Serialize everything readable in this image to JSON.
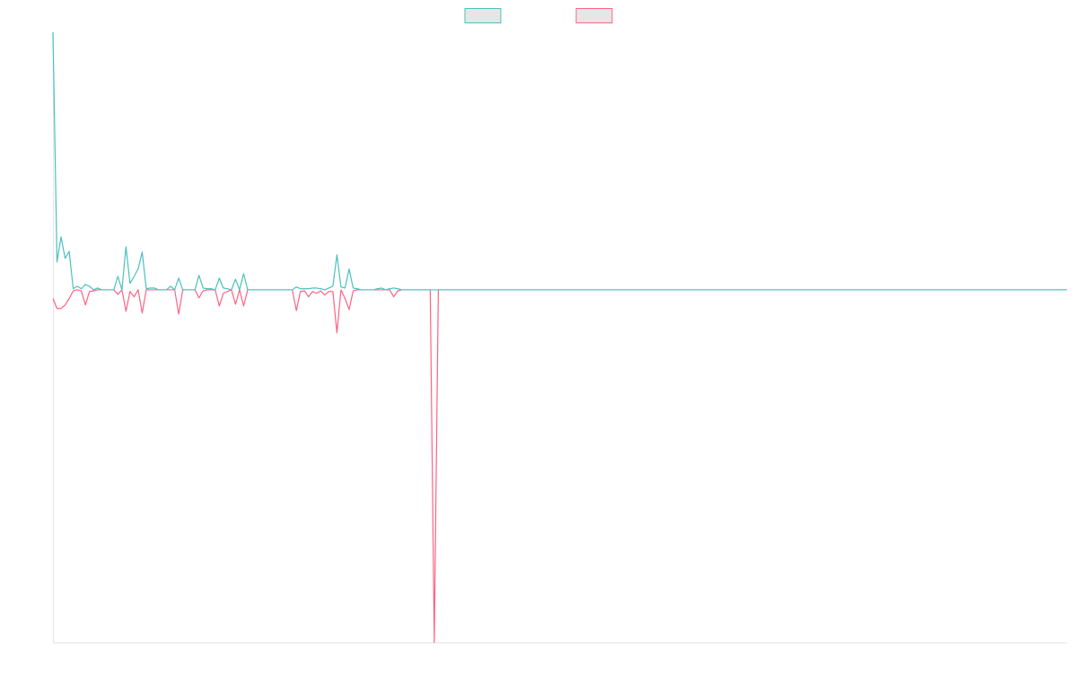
{
  "chart_data": {
    "type": "line",
    "legend": "top",
    "ylim": [
      -100,
      73
    ],
    "categories": [
      null,
      null,
      null,
      null,
      null,
      null,
      null,
      null,
      null,
      null,
      null,
      null,
      null,
      null,
      null,
      null,
      null,
      null,
      null,
      null,
      null,
      null,
      null,
      null,
      null,
      null,
      null,
      null,
      null,
      null,
      null,
      null,
      null,
      null,
      null,
      null,
      null,
      null,
      null,
      null,
      null,
      null,
      null,
      null,
      null,
      null,
      null,
      null,
      null,
      null,
      null,
      null,
      null,
      null,
      null,
      null,
      null,
      null,
      null,
      null,
      null,
      null,
      null,
      null,
      null,
      null,
      null,
      null,
      null,
      null,
      null,
      null,
      null,
      null,
      null,
      null,
      null,
      null,
      null,
      null,
      null,
      null,
      null,
      null,
      null,
      null,
      null,
      null,
      null,
      null,
      null,
      null,
      null,
      null,
      null,
      null,
      null,
      null,
      null,
      null,
      null,
      null,
      null,
      null,
      null,
      null,
      null,
      null,
      null,
      null,
      null,
      null,
      null,
      null,
      null,
      null,
      null,
      null,
      null,
      null,
      null,
      null,
      null,
      null,
      null,
      null,
      null,
      null,
      null,
      null,
      null,
      null,
      null,
      null,
      null,
      null,
      null,
      null,
      null,
      null,
      null,
      null,
      null,
      null,
      null,
      null,
      null,
      null,
      null,
      null,
      null,
      null,
      null,
      null,
      null,
      null,
      null,
      null,
      null,
      null,
      null,
      null,
      null,
      null,
      null,
      null,
      null,
      null,
      null,
      null,
      null,
      null,
      null,
      null,
      null,
      null,
      null,
      null,
      null,
      null,
      null,
      null,
      null,
      null,
      null,
      null,
      null,
      null,
      null,
      null,
      null,
      null,
      null,
      null,
      null,
      null,
      null,
      null,
      null,
      null,
      null,
      null,
      null,
      null,
      null,
      null,
      null,
      null,
      null,
      null,
      null,
      null,
      null,
      null,
      null,
      null,
      null,
      null,
      null,
      null,
      null,
      null,
      null,
      null,
      null,
      null,
      null,
      null,
      null,
      null,
      null,
      null,
      null,
      null,
      null,
      null,
      null,
      null,
      null,
      null,
      null,
      null,
      null,
      null,
      null,
      null,
      null,
      null,
      null,
      null,
      null
    ],
    "series": [
      {
        "color": "#4bc0c0",
        "values": [
          73,
          7.9,
          15,
          8.9,
          10.9,
          0.3,
          1,
          0.3,
          1.5,
          1,
          0,
          0.5,
          0,
          0,
          0,
          0,
          3.8,
          0,
          12.2,
          1.8,
          3.8,
          5.9,
          10.7,
          0.3,
          0.5,
          0.5,
          0,
          0,
          0,
          1,
          0,
          3.3,
          0,
          0,
          0,
          0,
          4.1,
          0.5,
          0.3,
          0.3,
          0,
          3.3,
          0.5,
          0.3,
          0,
          3,
          0,
          4.6,
          0,
          0,
          0,
          0,
          0,
          0,
          0,
          0,
          0,
          0,
          0,
          0,
          0.8,
          0.3,
          0.3,
          0.3,
          0.5,
          0.5,
          0.3,
          0,
          0.5,
          1,
          9.9,
          0.8,
          0.5,
          5.9,
          0.5,
          0.3,
          0,
          0,
          0,
          0,
          0.3,
          0.5,
          0,
          0.3,
          0.5,
          0.3,
          0,
          0,
          0,
          0,
          0,
          0,
          0,
          0,
          0,
          0,
          0,
          0,
          0,
          0,
          0,
          0,
          0,
          0,
          0,
          0,
          0,
          0,
          0,
          0,
          0,
          0,
          0,
          0,
          0,
          0,
          0,
          0,
          0,
          0,
          0,
          0,
          0,
          0,
          0,
          0,
          0,
          0,
          0,
          0,
          0,
          0,
          0,
          0,
          0,
          0,
          0,
          0,
          0,
          0,
          0,
          0,
          0,
          0,
          0,
          0,
          0,
          0,
          0,
          0,
          0,
          0,
          0,
          0,
          0,
          0,
          0,
          0,
          0,
          0,
          0,
          0,
          0,
          0,
          0,
          0,
          0,
          0,
          0,
          0,
          0,
          0,
          0,
          0,
          0,
          0,
          0,
          0,
          0,
          0,
          0,
          0,
          0,
          0,
          0,
          0,
          0,
          0,
          0,
          0,
          0,
          0,
          0,
          0,
          0,
          0,
          0,
          0,
          0,
          0,
          0,
          0,
          0,
          0,
          0,
          0,
          0,
          0,
          0,
          0,
          0,
          0,
          0,
          0,
          0,
          0,
          0,
          0,
          0,
          0,
          0,
          0,
          0,
          0,
          0,
          0,
          0,
          0,
          0,
          0,
          0,
          0,
          0,
          0,
          0,
          0,
          0,
          0,
          0,
          0,
          0,
          0,
          0,
          0,
          0,
          0,
          0,
          0,
          0,
          0,
          0
        ]
      },
      {
        "color": "#ff6384",
        "values": [
          -2.5,
          -5.3,
          -5.3,
          -4.3,
          -2.5,
          -0.3,
          0,
          -0.3,
          -4.3,
          -0.5,
          -0.3,
          0,
          0,
          0,
          0,
          0,
          -1.3,
          0,
          -6.1,
          -0.5,
          -2,
          0,
          -6.6,
          0,
          0,
          0,
          0,
          0,
          0,
          0,
          0,
          -6.9,
          0,
          0,
          0,
          0,
          -2.3,
          -0.3,
          0,
          0,
          0,
          -4.6,
          -1,
          -0.5,
          0,
          -4.1,
          0,
          -4.6,
          0,
          0,
          0,
          0,
          0,
          0,
          0,
          0,
          0,
          0,
          0,
          0,
          -5.9,
          -0.5,
          -0.3,
          -2,
          -0.5,
          -1,
          -0.3,
          -1.5,
          -0.5,
          -0.5,
          -12.2,
          0,
          -2.5,
          -5.6,
          -0.3,
          0,
          0,
          0,
          0,
          0,
          0,
          0,
          0,
          0,
          -2,
          -0.3,
          0,
          0,
          0,
          0,
          0,
          0,
          0,
          0,
          -100,
          0,
          0,
          0,
          0,
          0,
          0,
          0,
          0,
          0,
          0,
          0,
          0,
          0,
          0,
          0,
          0,
          0,
          0,
          0,
          0,
          0,
          0,
          0,
          0,
          0,
          0,
          0,
          0,
          0,
          0,
          0,
          0,
          0,
          0,
          0,
          0,
          0,
          0,
          0,
          0,
          0,
          0,
          0,
          0,
          0,
          0,
          0,
          0,
          0,
          0,
          0,
          0,
          0,
          0,
          0,
          0,
          0,
          0,
          0,
          0,
          0,
          0,
          0,
          0,
          0,
          0,
          0,
          0,
          0,
          0,
          0,
          0,
          0,
          0,
          0,
          0,
          0,
          0,
          0,
          0,
          0,
          0,
          0,
          0,
          0,
          0,
          0,
          0,
          0,
          0,
          0,
          0,
          0,
          0,
          0,
          0,
          0,
          0,
          0,
          0,
          0,
          0,
          0,
          0,
          0,
          0,
          0,
          0,
          0,
          0,
          0,
          0,
          0,
          0,
          0,
          0,
          0,
          0,
          0,
          0,
          0,
          0,
          0,
          0,
          0,
          0,
          0,
          0,
          0,
          0,
          0,
          0,
          0,
          0,
          0,
          0,
          0,
          0,
          0,
          0,
          0,
          0,
          0,
          0,
          0,
          0,
          0,
          0,
          0,
          0,
          0,
          0,
          0,
          0,
          0,
          0
        ]
      }
    ]
  }
}
